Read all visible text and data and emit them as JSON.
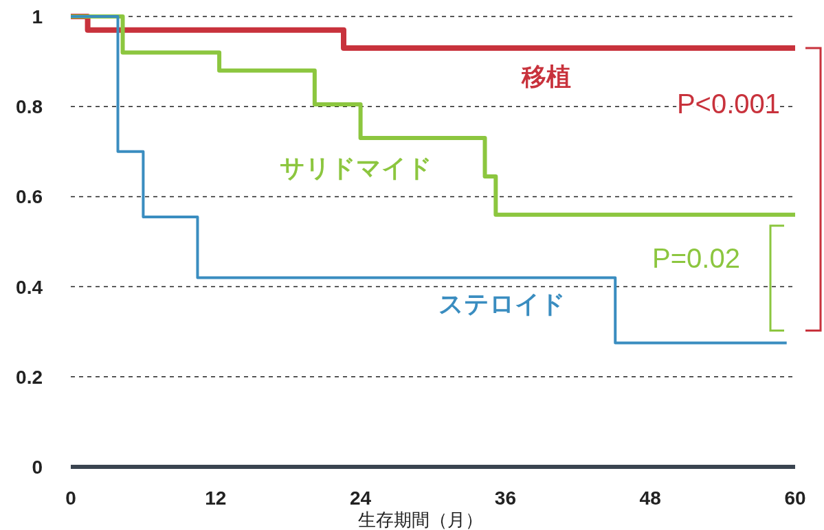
{
  "chart_data": {
    "type": "step",
    "xlabel": "生存期間（月）",
    "xlim": [
      0,
      60
    ],
    "ylim": [
      0,
      1
    ],
    "xticks": [
      0,
      12,
      24,
      36,
      48,
      60
    ],
    "yticks": [
      0,
      0.2,
      0.4,
      0.6,
      0.8,
      1
    ],
    "grid": "y",
    "series": [
      {
        "name": "移植",
        "color": "#c8323c",
        "x": [
          0,
          1.4,
          22.6,
          60
        ],
        "values": [
          1,
          0.97,
          0.93,
          0.93
        ]
      },
      {
        "name": "サリドマイド",
        "color": "#8cc63f",
        "x": [
          0,
          4.3,
          12.3,
          20.2,
          24,
          34.3,
          35.2,
          60
        ],
        "values": [
          1,
          0.92,
          0.88,
          0.805,
          0.73,
          0.645,
          0.56,
          0.56
        ]
      },
      {
        "name": "ステロイド",
        "color": "#3a8dc0",
        "x": [
          0,
          3.9,
          6,
          10.5,
          45.1,
          59.3
        ],
        "values": [
          1,
          0.7,
          0.555,
          0.42,
          0.275,
          0.275
        ]
      }
    ],
    "annotations": [
      "P<0.001",
      "P=0.02"
    ]
  }
}
